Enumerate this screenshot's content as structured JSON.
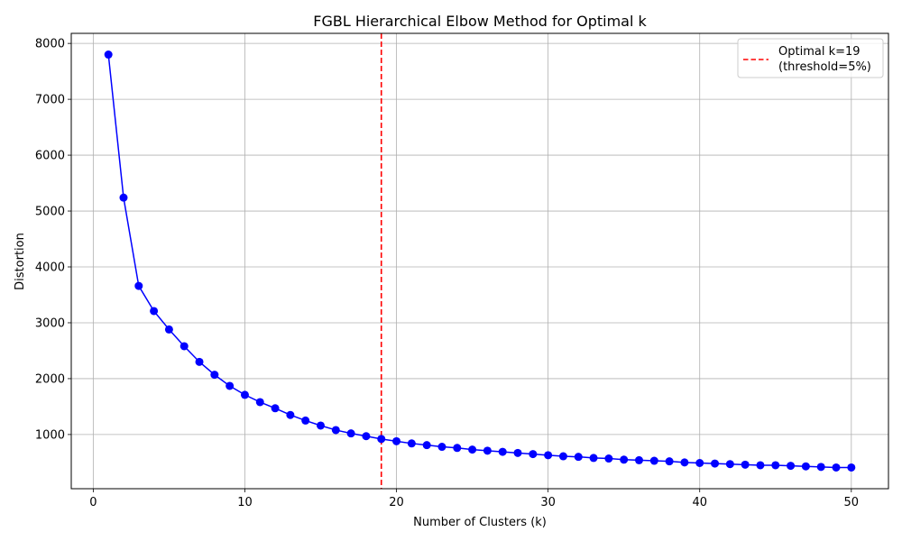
{
  "chart_data": {
    "type": "line",
    "title": "FGBL Hierarchical Elbow Method for Optimal k",
    "xlabel": "Number of Clusters (k)",
    "ylabel": "Distortion",
    "xlim": [
      -1.45,
      52.45
    ],
    "ylim": [
      30,
      8180
    ],
    "x_ticks": [
      0,
      10,
      20,
      30,
      40,
      50
    ],
    "y_ticks": [
      1000,
      2000,
      3000,
      4000,
      5000,
      6000,
      7000,
      8000
    ],
    "x_tick_labels": [
      "0",
      "10",
      "20",
      "30",
      "40",
      "50"
    ],
    "y_tick_labels": [
      "1000",
      "2000",
      "3000",
      "4000",
      "5000",
      "6000",
      "7000",
      "8000"
    ],
    "grid": true,
    "legend_position": "top-right",
    "series": [
      {
        "name": "",
        "color": "#0000ff",
        "marker": "circle",
        "x": [
          1,
          2,
          3,
          4,
          5,
          6,
          7,
          8,
          9,
          10,
          11,
          12,
          13,
          14,
          15,
          16,
          17,
          18,
          19,
          20,
          21,
          22,
          23,
          24,
          25,
          26,
          27,
          28,
          29,
          30,
          31,
          32,
          33,
          34,
          35,
          36,
          37,
          38,
          39,
          40,
          41,
          42,
          43,
          44,
          45,
          46,
          47,
          48,
          49,
          50
        ],
        "values": [
          7800,
          5240,
          3660,
          3210,
          2880,
          2580,
          2300,
          2070,
          1870,
          1710,
          1580,
          1470,
          1350,
          1250,
          1160,
          1080,
          1020,
          970,
          920,
          880,
          840,
          810,
          780,
          760,
          730,
          710,
          690,
          670,
          650,
          630,
          610,
          600,
          580,
          570,
          550,
          540,
          530,
          520,
          500,
          490,
          480,
          470,
          460,
          450,
          450,
          440,
          430,
          420,
          410,
          410
        ]
      }
    ],
    "reference_line": {
      "orientation": "vertical",
      "x": 19,
      "color": "#ff0000",
      "style": "dashed",
      "legend_label_line1": "Optimal k=19",
      "legend_label_line2": "(threshold=5%)"
    }
  }
}
